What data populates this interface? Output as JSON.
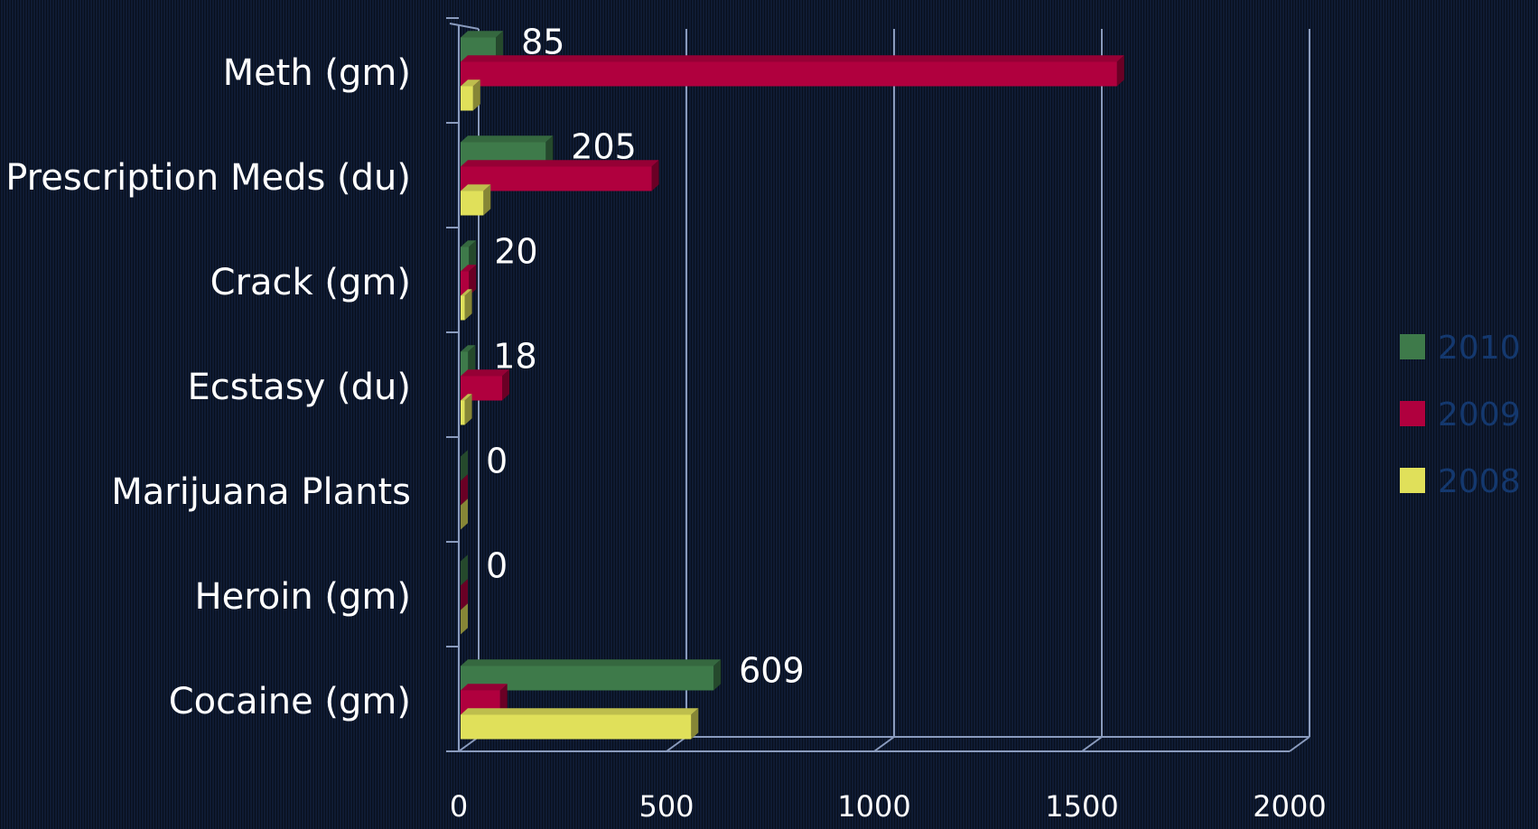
{
  "chart_data": {
    "type": "bar",
    "orientation": "horizontal",
    "categories": [
      "Meth (gm)",
      "Prescription Meds (du)",
      "Crack (gm)",
      "Ecstasy (du)",
      "Marijuana Plants",
      "Heroin (gm)",
      "Cocaine (gm)"
    ],
    "series": [
      {
        "name": "2010",
        "color": "#3e7a4a",
        "values": [
          85,
          205,
          20,
          18,
          0,
          0,
          609
        ]
      },
      {
        "name": "2009",
        "color": "#b0003e",
        "values": [
          1580,
          460,
          20,
          100,
          0,
          0,
          95
        ]
      },
      {
        "name": "2008",
        "color": "#e0e05a",
        "values": [
          30,
          55,
          10,
          10,
          0,
          0,
          555
        ]
      }
    ],
    "data_labels": [
      "85",
      "205",
      "20",
      "18",
      "0",
      "0",
      "609"
    ],
    "xlim": [
      0,
      2000
    ],
    "xticks": [
      "0",
      "500",
      "1000",
      "1500",
      "2000"
    ],
    "grid": "vertical",
    "legend": "right"
  }
}
